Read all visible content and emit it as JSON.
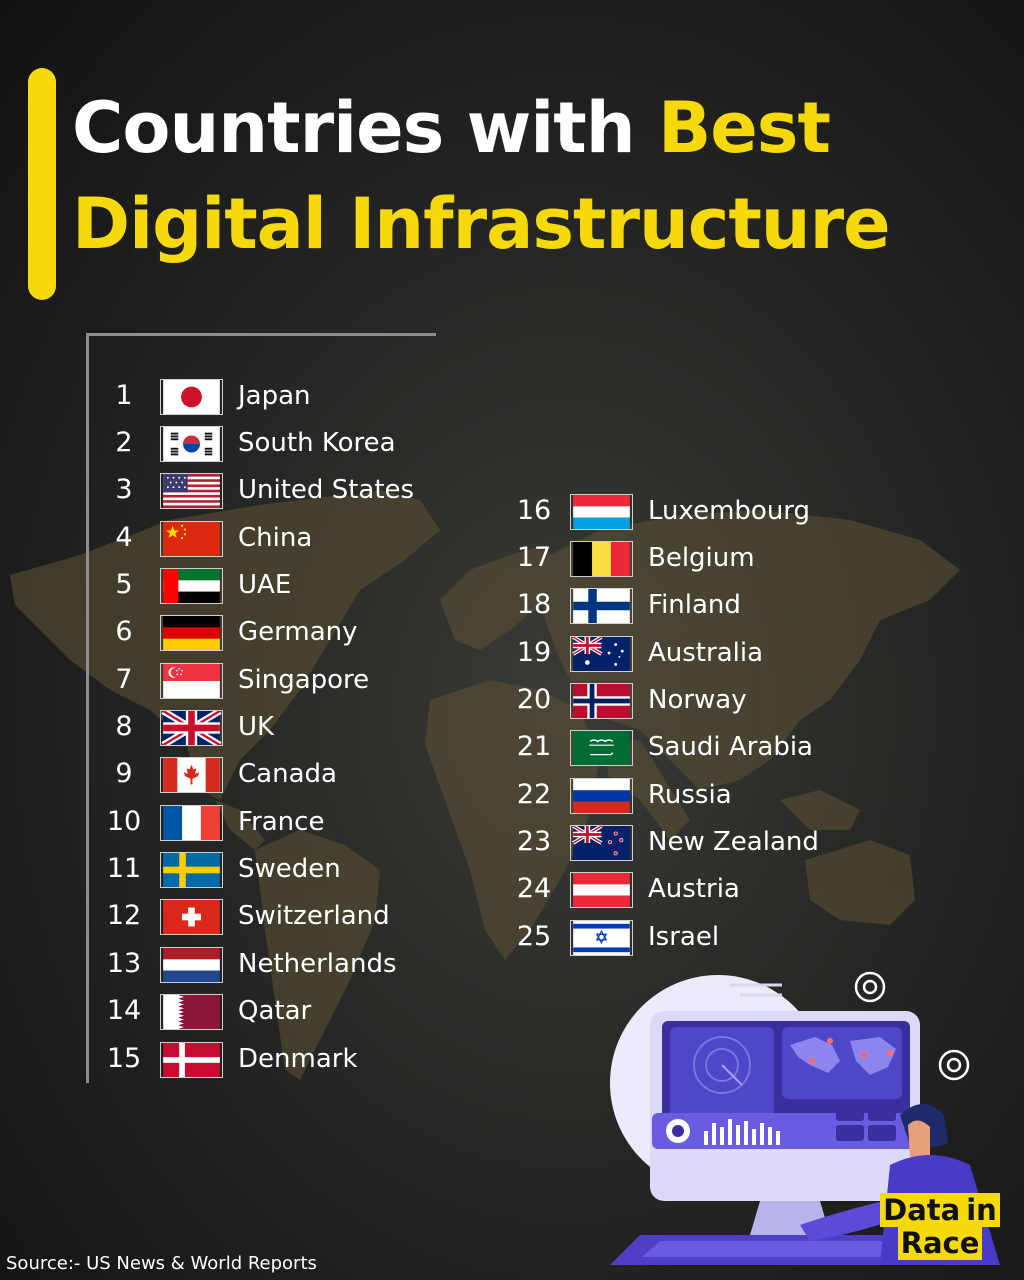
{
  "title": {
    "part1": "Countries with ",
    "part2": "Best",
    "line2": "Digital Infrastructure"
  },
  "colors": {
    "accent": "#f5d90a",
    "background": "#1c1c1a",
    "map": "#5c5334"
  },
  "ranking": [
    {
      "rank": "1",
      "country": "Japan",
      "flag": "japan-flag"
    },
    {
      "rank": "2",
      "country": "South Korea",
      "flag": "south-korea-flag"
    },
    {
      "rank": "3",
      "country": "United States",
      "flag": "united-states-flag"
    },
    {
      "rank": "4",
      "country": "China",
      "flag": "china-flag"
    },
    {
      "rank": "5",
      "country": "UAE",
      "flag": "uae-flag"
    },
    {
      "rank": "6",
      "country": "Germany",
      "flag": "germany-flag"
    },
    {
      "rank": "7",
      "country": "Singapore",
      "flag": "singapore-flag"
    },
    {
      "rank": "8",
      "country": "UK",
      "flag": "uk-flag"
    },
    {
      "rank": "9",
      "country": "Canada",
      "flag": "canada-flag"
    },
    {
      "rank": "10",
      "country": "France",
      "flag": "france-flag"
    },
    {
      "rank": "11",
      "country": "Sweden",
      "flag": "sweden-flag"
    },
    {
      "rank": "12",
      "country": "Switzerland",
      "flag": "switzerland-flag"
    },
    {
      "rank": "13",
      "country": "Netherlands",
      "flag": "netherlands-flag"
    },
    {
      "rank": "14",
      "country": "Qatar",
      "flag": "qatar-flag"
    },
    {
      "rank": "15",
      "country": "Denmark",
      "flag": "denmark-flag"
    },
    {
      "rank": "16",
      "country": "Luxembourg",
      "flag": "luxembourg-flag"
    },
    {
      "rank": "17",
      "country": "Belgium",
      "flag": "belgium-flag"
    },
    {
      "rank": "18",
      "country": "Finland",
      "flag": "finland-flag"
    },
    {
      "rank": "19",
      "country": "Australia",
      "flag": "australia-flag"
    },
    {
      "rank": "20",
      "country": "Norway",
      "flag": "norway-flag"
    },
    {
      "rank": "21",
      "country": "Saudi Arabia",
      "flag": "saudi-arabia-flag"
    },
    {
      "rank": "22",
      "country": "Russia",
      "flag": "russia-flag"
    },
    {
      "rank": "23",
      "country": "New Zealand",
      "flag": "new-zealand-flag"
    },
    {
      "rank": "24",
      "country": "Austria",
      "flag": "austria-flag"
    },
    {
      "rank": "25",
      "country": "Israel",
      "flag": "israel-flag"
    }
  ],
  "source": "Source:-  US News & World Reports",
  "logo": {
    "line1_a": "Data",
    "line1_b": "in",
    "line2": "Race"
  }
}
